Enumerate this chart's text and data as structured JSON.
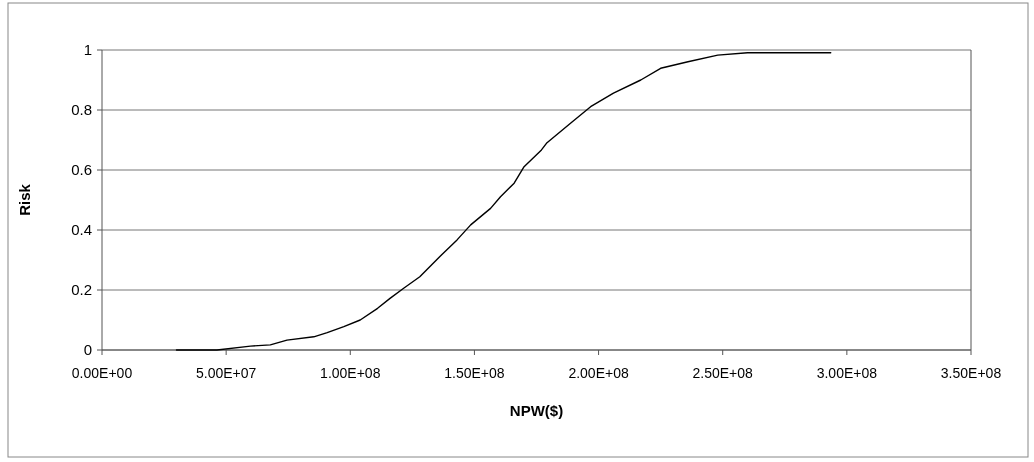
{
  "chart_data": {
    "type": "line",
    "xlabel": "NPW($)",
    "ylabel": "Risk",
    "x": [
      30000000,
      46300000,
      59800000,
      67800000,
      74500000,
      85300000,
      90700000,
      97400000,
      104000000,
      111000000,
      116000000,
      121500000,
      128000000,
      136000000,
      143000000,
      148500000,
      156500000,
      160500000,
      166000000,
      170000000,
      177000000,
      179000000,
      188700000,
      196800000,
      206000000,
      217000000,
      225000000,
      236000000,
      248000000,
      260000000,
      293500000
    ],
    "series": [
      {
        "color": "#000000",
        "values": [
          0,
          0,
          0.013,
          0.017,
          0.033,
          0.044,
          0.058,
          0.078,
          0.1,
          0.139,
          0.172,
          0.206,
          0.244,
          0.311,
          0.367,
          0.417,
          0.472,
          0.511,
          0.556,
          0.611,
          0.667,
          0.689,
          0.756,
          0.811,
          0.856,
          0.9,
          0.939,
          0.961,
          0.983,
          0.991,
          0.991
        ]
      }
    ],
    "xlim": [
      0,
      350000000
    ],
    "xticks": [
      {
        "value": 0,
        "label": "0.00E+00"
      },
      {
        "value": 50000000,
        "label": "5.00E+07"
      },
      {
        "value": 100000000,
        "label": "1.00E+08"
      },
      {
        "value": 150000000,
        "label": "1.50E+08"
      },
      {
        "value": 200000000,
        "label": "2.00E+08"
      },
      {
        "value": 250000000,
        "label": "2.50E+08"
      },
      {
        "value": 300000000,
        "label": "3.00E+08"
      },
      {
        "value": 350000000,
        "label": "3.50E+08"
      }
    ],
    "ylim": [
      0,
      1
    ],
    "yticks": [
      0,
      0.2,
      0.4,
      0.6,
      0.8,
      1
    ],
    "grid": "y",
    "marker": "none",
    "line_style": "solid"
  }
}
